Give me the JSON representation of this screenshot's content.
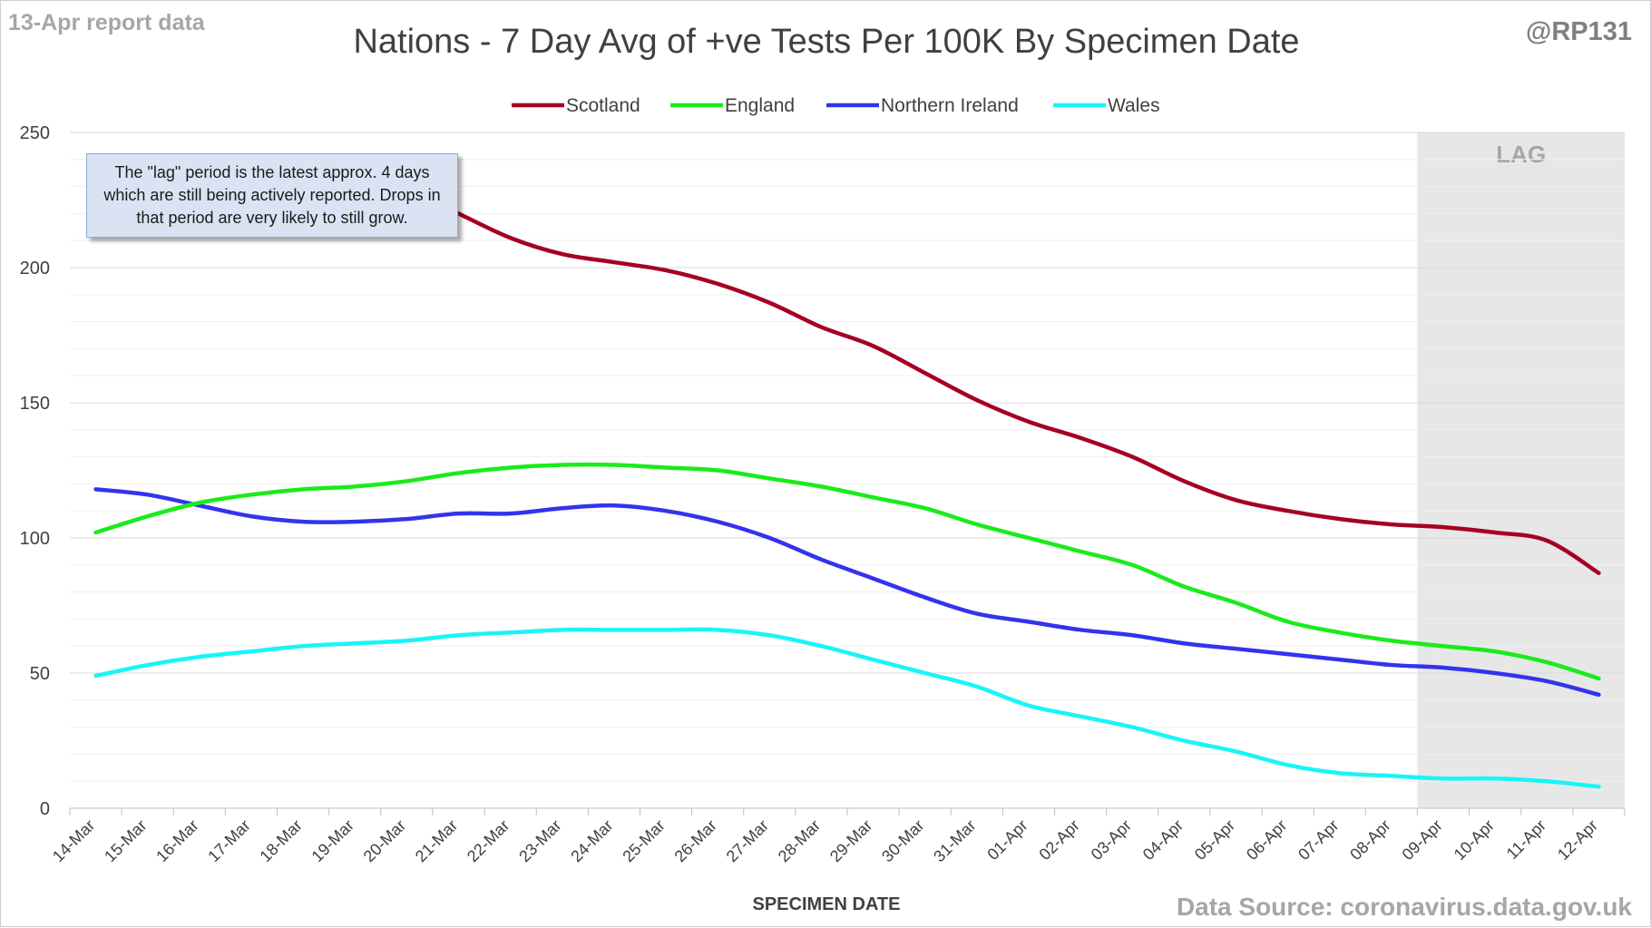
{
  "header": {
    "report_label": "13-Apr report data",
    "handle": "@RP131"
  },
  "annotation": {
    "note": "The \"lag\" period is the latest approx. 4 days which are still being actively reported. Drops in that period are very likely to still grow.",
    "lag_label": "LAG"
  },
  "footer": {
    "source": "Data Source: coronavirus.data.gov.uk"
  },
  "chart_data": {
    "type": "line",
    "title": "Nations - 7 Day Avg of +ve Tests Per 100K By Specimen Date",
    "xlabel": "SPECIMEN DATE",
    "ylabel": "",
    "ylim": [
      0,
      250
    ],
    "yticks": [
      0,
      50,
      100,
      150,
      200,
      250
    ],
    "grid": true,
    "legend_position": "top-center",
    "lag_start": "09-Apr",
    "categories": [
      "14-Mar",
      "15-Mar",
      "16-Mar",
      "17-Mar",
      "18-Mar",
      "19-Mar",
      "20-Mar",
      "21-Mar",
      "22-Mar",
      "23-Mar",
      "24-Mar",
      "25-Mar",
      "26-Mar",
      "27-Mar",
      "28-Mar",
      "29-Mar",
      "30-Mar",
      "31-Mar",
      "01-Apr",
      "02-Apr",
      "03-Apr",
      "04-Apr",
      "05-Apr",
      "06-Apr",
      "07-Apr",
      "08-Apr",
      "09-Apr",
      "10-Apr",
      "11-Apr",
      "12-Apr"
    ],
    "series": [
      {
        "name": "Scotland",
        "color": "#a50021",
        "values": [
          null,
          null,
          null,
          null,
          null,
          null,
          null,
          220,
          211,
          205,
          202,
          199,
          194,
          187,
          178,
          171,
          161,
          151,
          143,
          137,
          130,
          121,
          114,
          110,
          107,
          105,
          104,
          102,
          99,
          87
        ]
      },
      {
        "name": "England",
        "color": "#1aeb1a",
        "values": [
          102,
          108,
          113,
          116,
          118,
          119,
          121,
          124,
          126,
          127,
          127,
          126,
          125,
          122,
          119,
          115,
          111,
          105,
          100,
          95,
          90,
          82,
          76,
          69,
          65,
          62,
          60,
          58,
          54,
          48
        ]
      },
      {
        "name": "Northern Ireland",
        "color": "#3333ee",
        "values": [
          118,
          116,
          112,
          108,
          106,
          106,
          107,
          109,
          109,
          111,
          112,
          110,
          106,
          100,
          92,
          85,
          78,
          72,
          69,
          66,
          64,
          61,
          59,
          57,
          55,
          53,
          52,
          50,
          47,
          42
        ]
      },
      {
        "name": "Wales",
        "color": "#19f5f5",
        "values": [
          49,
          53,
          56,
          58,
          60,
          61,
          62,
          64,
          65,
          66,
          66,
          66,
          66,
          64,
          60,
          55,
          50,
          45,
          38,
          34,
          30,
          25,
          21,
          16,
          13,
          12,
          11,
          11,
          10,
          8
        ]
      }
    ]
  }
}
